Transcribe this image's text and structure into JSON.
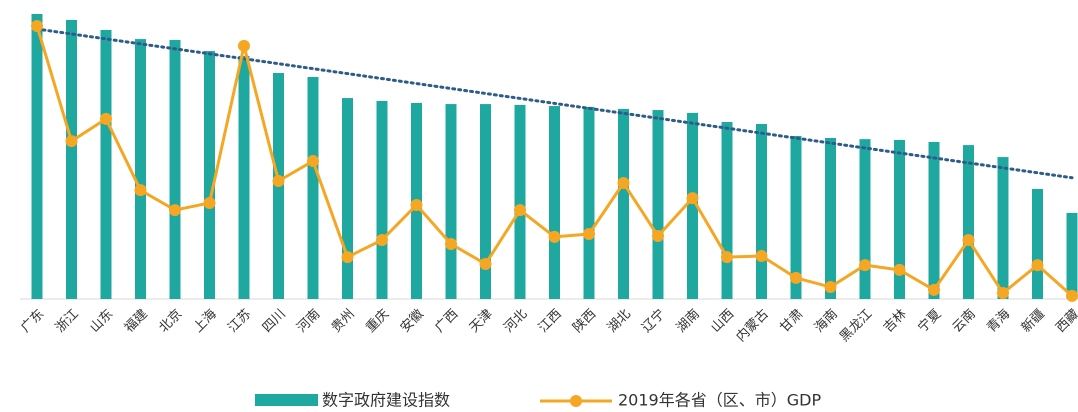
{
  "chart_data": {
    "type": "bar_line",
    "categories": [
      "广东",
      "浙江",
      "山东",
      "福建",
      "北京",
      "上海",
      "江苏",
      "四川",
      "河南",
      "贵州",
      "重庆",
      "安徽",
      "广西",
      "天津",
      "河北",
      "江西",
      "陕西",
      "湖北",
      "辽宁",
      "湖南",
      "山西",
      "内蒙古",
      "甘肃",
      "海南",
      "黑龙江",
      "吉林",
      "宁夏",
      "云南",
      "青海",
      "新疆",
      "西藏"
    ],
    "series": [
      {
        "name": "数字政府建设指数",
        "type": "bar",
        "color": "#1fa8a0",
        "values": [
          100,
          97.9,
          94.4,
          91.2,
          90.9,
          87.0,
          85.3,
          79.3,
          77.9,
          70.5,
          69.5,
          68.8,
          68.4,
          68.4,
          68.1,
          67.7,
          67.4,
          66.7,
          66.3,
          65.3,
          62.1,
          61.4,
          57.2,
          56.5,
          56.1,
          55.8,
          55.1,
          54.0,
          49.8,
          38.6,
          30.2
        ]
      },
      {
        "name": "2019年各省（区、市）GDP",
        "type": "line",
        "axis": "y2",
        "color": "#f5a623",
        "values": [
          95.8,
          55.4,
          63.2,
          38.2,
          31.2,
          33.7,
          88.8,
          41.4,
          48.4,
          14.7,
          20.7,
          33.0,
          19.3,
          12.3,
          31.2,
          21.8,
          22.8,
          40.7,
          22.1,
          35.4,
          14.7,
          15.1,
          7.4,
          4.2,
          11.9,
          10.2,
          3.2,
          20.7,
          2.1,
          11.9,
          1.1
        ]
      }
    ],
    "ylim": [
      0,
      100
    ],
    "y2lim": [
      0,
      100
    ],
    "trendline": true
  }
}
